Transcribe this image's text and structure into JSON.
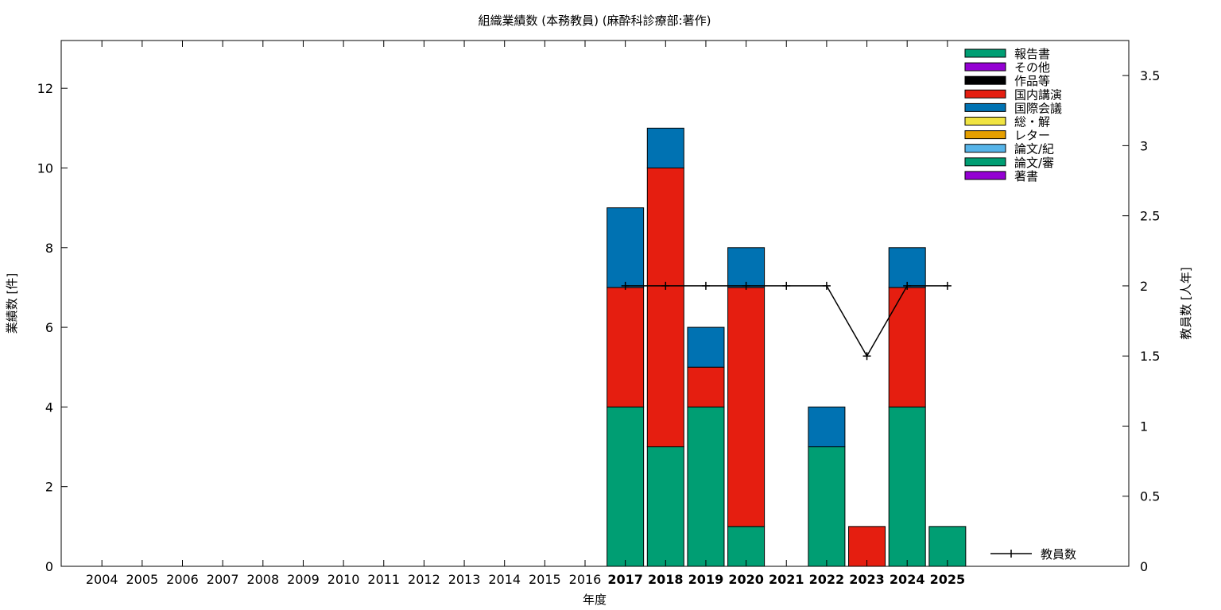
{
  "chart_data": {
    "type": "bar",
    "title": "組織業績数 (本務教員) (麻酔科診療部:著作)",
    "xlabel": "年度",
    "ylabel": "業績数 [件]",
    "y2label": "教員数 [人年]",
    "ylim": [
      0,
      13.2
    ],
    "y2lim": [
      0,
      3.75
    ],
    "yticks": [
      "0",
      "2",
      "4",
      "6",
      "8",
      "10",
      "12"
    ],
    "y2ticks": [
      "0",
      "0.5",
      "1",
      "1.5",
      "2",
      "2.5",
      "3",
      "3.5"
    ],
    "categories": [
      "2004",
      "2005",
      "2006",
      "2007",
      "2008",
      "2009",
      "2010",
      "2011",
      "2012",
      "2013",
      "2014",
      "2015",
      "2016",
      "2017",
      "2018",
      "2019",
      "2020",
      "2021",
      "2022",
      "2023",
      "2024",
      "2025"
    ],
    "highlighted_categories": [
      "2017",
      "2018",
      "2019",
      "2020",
      "2021",
      "2022",
      "2023",
      "2024",
      "2025"
    ],
    "stacked": true,
    "legend_position": "top-right",
    "series": [
      {
        "name": "報告書",
        "color": "#009E73",
        "values": [
          0,
          0,
          0,
          0,
          0,
          0,
          0,
          0,
          0,
          0,
          0,
          0,
          0,
          4,
          3,
          4,
          1,
          0,
          3,
          0,
          4,
          1
        ]
      },
      {
        "name": "その他",
        "color": "#9400D3",
        "values": [
          0,
          0,
          0,
          0,
          0,
          0,
          0,
          0,
          0,
          0,
          0,
          0,
          0,
          0,
          0,
          0,
          0,
          0,
          0,
          0,
          0,
          0
        ]
      },
      {
        "name": "作品等",
        "color": "#000000",
        "values": [
          0,
          0,
          0,
          0,
          0,
          0,
          0,
          0,
          0,
          0,
          0,
          0,
          0,
          0,
          0,
          0,
          0,
          0,
          0,
          0,
          0,
          0
        ]
      },
      {
        "name": "国内講演",
        "color": "#E51E10",
        "values": [
          0,
          0,
          0,
          0,
          0,
          0,
          0,
          0,
          0,
          0,
          0,
          0,
          0,
          3,
          7,
          1,
          6,
          0,
          0,
          1,
          3,
          0
        ]
      },
      {
        "name": "国際会議",
        "color": "#0072B2",
        "values": [
          0,
          0,
          0,
          0,
          0,
          0,
          0,
          0,
          0,
          0,
          0,
          0,
          0,
          2,
          1,
          1,
          1,
          0,
          1,
          0,
          1,
          0
        ]
      },
      {
        "name": "総・解",
        "color": "#F0E442",
        "values": [
          0,
          0,
          0,
          0,
          0,
          0,
          0,
          0,
          0,
          0,
          0,
          0,
          0,
          0,
          0,
          0,
          0,
          0,
          0,
          0,
          0,
          0
        ]
      },
      {
        "name": "レター",
        "color": "#E69F00",
        "values": [
          0,
          0,
          0,
          0,
          0,
          0,
          0,
          0,
          0,
          0,
          0,
          0,
          0,
          0,
          0,
          0,
          0,
          0,
          0,
          0,
          0,
          0
        ]
      },
      {
        "name": "論文/紀",
        "color": "#56B4E9",
        "values": [
          0,
          0,
          0,
          0,
          0,
          0,
          0,
          0,
          0,
          0,
          0,
          0,
          0,
          0,
          0,
          0,
          0,
          0,
          0,
          0,
          0,
          0
        ]
      },
      {
        "name": "論文/審",
        "color": "#009E73",
        "values": [
          0,
          0,
          0,
          0,
          0,
          0,
          0,
          0,
          0,
          0,
          0,
          0,
          0,
          0,
          0,
          0,
          0,
          0,
          0,
          0,
          0,
          0
        ]
      },
      {
        "name": "著書",
        "color": "#9400D3",
        "values": [
          0,
          0,
          0,
          0,
          0,
          0,
          0,
          0,
          0,
          0,
          0,
          0,
          0,
          0,
          0,
          0,
          0,
          0,
          0,
          0,
          0,
          0
        ]
      }
    ],
    "line_series": {
      "name": "教員数",
      "color": "#000000",
      "axis": "right",
      "x": [
        "2017",
        "2018",
        "2019",
        "2020",
        "2021",
        "2022",
        "2023",
        "2024",
        "2025"
      ],
      "values": [
        2,
        2,
        2,
        2,
        2,
        2,
        1.5,
        2,
        2
      ]
    }
  }
}
